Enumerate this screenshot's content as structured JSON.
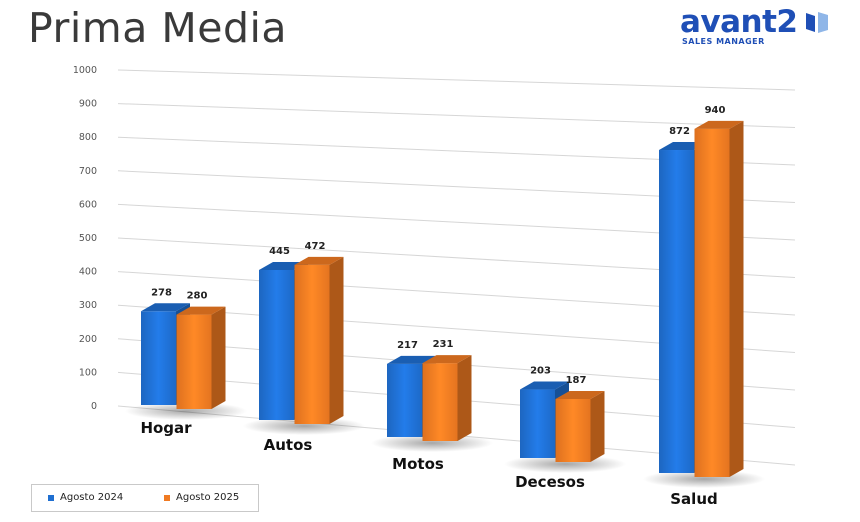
{
  "header": {
    "title": "Prima Media",
    "logo_text": "avant2",
    "logo_tagline": "SALES MANAGER"
  },
  "colors": {
    "series_2024": "#1f6fd1",
    "series_2025": "#f07a22",
    "title": "#3a3a3a",
    "logo": "#1f4fb6"
  },
  "legend": {
    "items": [
      {
        "label": "Agosto 2024"
      },
      {
        "label": "Agosto 2025"
      }
    ]
  },
  "chart_data": {
    "type": "bar",
    "title": "Prima Media",
    "categories": [
      "Hogar",
      "Autos",
      "Motos",
      "Decesos",
      "Salud"
    ],
    "series": [
      {
        "name": "Agosto 2024",
        "values": [
          278,
          445,
          217,
          203,
          872
        ]
      },
      {
        "name": "Agosto 2025",
        "values": [
          280,
          472,
          231,
          187,
          940
        ]
      }
    ],
    "ylim": [
      0,
      1000
    ],
    "yticks": [
      0,
      100,
      200,
      300,
      400,
      500,
      600,
      700,
      800,
      900,
      1000
    ],
    "grid": true,
    "legend_position": "bottom-left",
    "style": "3d-perspective"
  }
}
